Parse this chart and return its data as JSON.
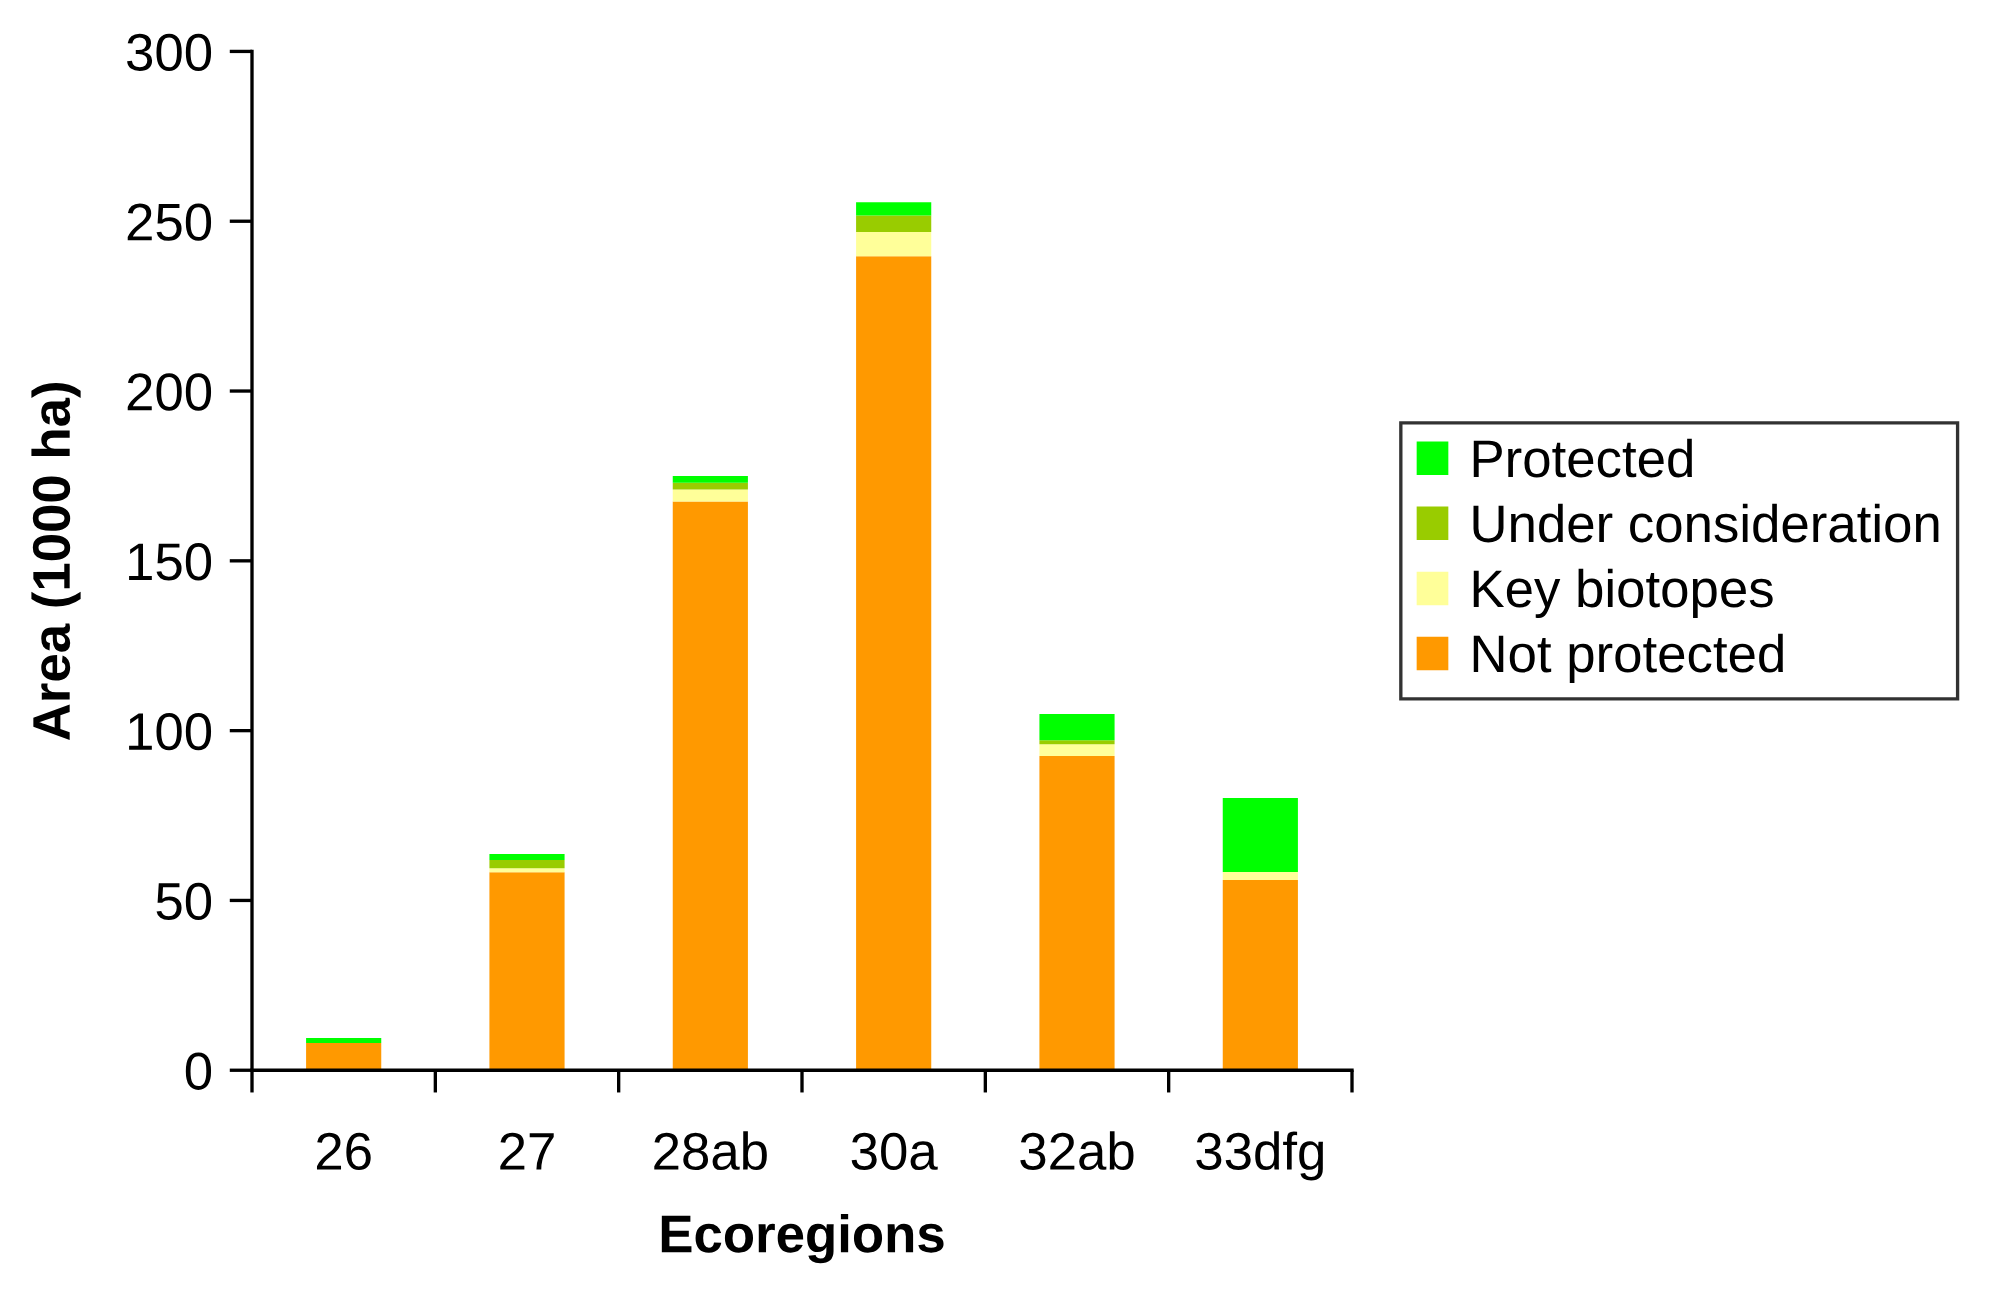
{
  "chart_data": {
    "type": "bar",
    "stacked": true,
    "xlabel": "Ecoregions",
    "ylabel": "Area (1000 ha)",
    "categories": [
      "26",
      "27",
      "28ab",
      "30a",
      "32ab",
      "33dfg"
    ],
    "series": [
      {
        "name": "Not protected",
        "color": "#ff9900",
        "values": [
          8,
          58.3,
          167.5,
          239.7,
          92.5,
          56
        ]
      },
      {
        "name": "Key biotopes",
        "color": "#ffff99",
        "values": [
          0,
          1.2,
          3.5,
          7.1,
          3.5,
          2.4
        ]
      },
      {
        "name": "Under consideration",
        "color": "#99cc00",
        "values": [
          0,
          2.4,
          2,
          4.9,
          1.2,
          0
        ]
      },
      {
        "name": "Protected",
        "color": "#00ff00",
        "values": [
          1.5,
          1.8,
          2,
          3.9,
          7.7,
          21.8
        ]
      }
    ],
    "ylim": [
      0,
      300
    ],
    "yticks": [
      0,
      50,
      100,
      150,
      200,
      250,
      300
    ],
    "grid": false,
    "legend": "right"
  }
}
